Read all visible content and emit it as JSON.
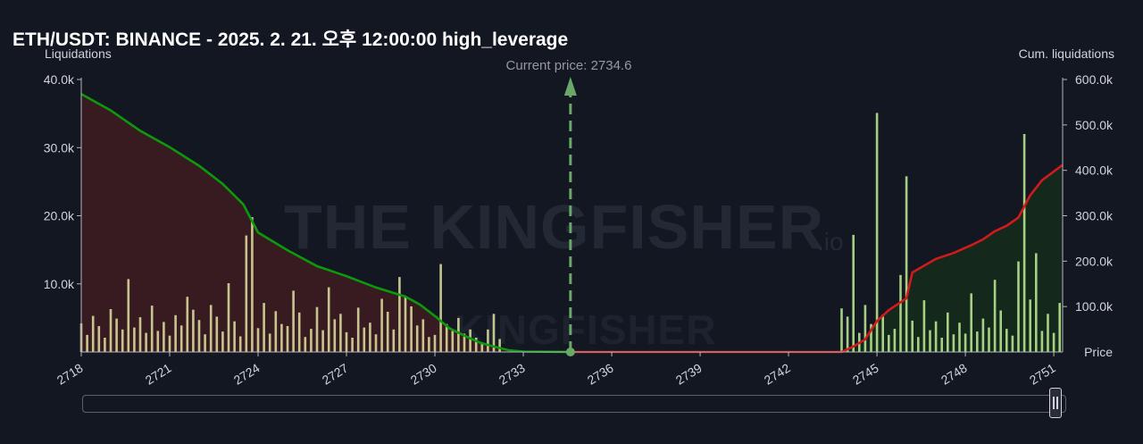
{
  "title": "ETH/USDT: BINANCE - 2025. 2. 21. 오후 12:00:00 high_leverage",
  "axes": {
    "left_title": "Liquidations",
    "right_title": "Cum. liquidations",
    "x_title": "Price"
  },
  "current_price_label": "Current price: 2734.6",
  "watermark": "THE KINGFISHER",
  "watermark_suffix": ".io",
  "colors": {
    "background": "#131722",
    "bars": "#d7d79a",
    "bars_right": "#b6e28f",
    "cum_left": "#0c9a0c",
    "cum_right": "#d11a1a",
    "area_left": "#3a1b22",
    "area_right": "#14291c",
    "current_price": "#6aa86a"
  },
  "chart_data": {
    "type": "bar",
    "title": "ETH/USDT: BINANCE - 2025. 2. 21. 오후 12:00:00 high_leverage",
    "xlabel": "Price",
    "ylabel": "Liquidations",
    "y2label": "Cum. liquidations",
    "xlim": [
      2718,
      2751.3
    ],
    "ylim": [
      0,
      40000
    ],
    "y2lim": [
      0,
      600000
    ],
    "x_ticks": [
      2718,
      2721,
      2724,
      2727,
      2730,
      2733,
      2736,
      2739,
      2742,
      2745,
      2748,
      2751
    ],
    "y_ticks": [
      {
        "v": 10000,
        "label": "10.0k"
      },
      {
        "v": 20000,
        "label": "20.0k"
      },
      {
        "v": 30000,
        "label": "30.0k"
      },
      {
        "v": 40000,
        "label": "40.0k"
      }
    ],
    "y2_ticks": [
      {
        "v": 100000,
        "label": "100.0k"
      },
      {
        "v": 200000,
        "label": "200.0k"
      },
      {
        "v": 300000,
        "label": "300.0k"
      },
      {
        "v": 400000,
        "label": "400.0k"
      },
      {
        "v": 500000,
        "label": "500.0k"
      },
      {
        "v": 600000,
        "label": "600.0k"
      }
    ],
    "current_price": 2734.6,
    "series": [
      {
        "name": "Liquidations (below price)",
        "x": [
          2718.0,
          2718.2,
          2718.4,
          2718.6,
          2718.8,
          2719.0,
          2719.2,
          2719.4,
          2719.6,
          2719.8,
          2720.0,
          2720.2,
          2720.4,
          2720.6,
          2720.8,
          2721.0,
          2721.2,
          2721.4,
          2721.6,
          2721.8,
          2722.0,
          2722.2,
          2722.4,
          2722.6,
          2722.8,
          2723.0,
          2723.2,
          2723.4,
          2723.6,
          2723.8,
          2724.0,
          2724.2,
          2724.4,
          2724.6,
          2724.8,
          2725.0,
          2725.2,
          2725.4,
          2725.6,
          2725.8,
          2726.0,
          2726.2,
          2726.4,
          2726.6,
          2726.8,
          2727.0,
          2727.2,
          2727.4,
          2727.6,
          2727.8,
          2728.0,
          2728.2,
          2728.4,
          2728.6,
          2728.8,
          2729.0,
          2729.2,
          2729.4,
          2729.6,
          2729.8,
          2730.0,
          2730.2,
          2730.4,
          2730.6,
          2730.8,
          2731.0,
          2731.2,
          2731.4,
          2731.6,
          2731.8,
          2732.0,
          2732.2
        ],
        "values": [
          4200,
          2500,
          5300,
          3800,
          2100,
          6300,
          4900,
          3300,
          10700,
          3600,
          5100,
          2800,
          6800,
          3100,
          4400,
          2400,
          5400,
          3900,
          8100,
          6200,
          4700,
          2600,
          6900,
          5200,
          3000,
          10100,
          4500,
          2300,
          17100,
          19800,
          3500,
          7200,
          2700,
          6000,
          4100,
          3800,
          9000,
          5800,
          2200,
          3400,
          6600,
          3200,
          9500,
          4800,
          5600,
          2900,
          2100,
          6500,
          3600,
          4300,
          2600,
          7800,
          5900,
          3300,
          11000,
          8200,
          6700,
          3900,
          4800,
          2200,
          2500,
          12900,
          4100,
          3100,
          5000,
          2700,
          3300,
          2100,
          1400,
          3300,
          5600,
          1900
        ]
      },
      {
        "name": "Liquidations (above price)",
        "x": [
          2743.8,
          2744.0,
          2744.2,
          2744.4,
          2744.6,
          2744.8,
          2745.0,
          2745.2,
          2745.4,
          2745.6,
          2745.8,
          2746.0,
          2746.2,
          2746.4,
          2746.6,
          2746.8,
          2747.0,
          2747.2,
          2747.4,
          2747.6,
          2747.8,
          2748.0,
          2748.2,
          2748.4,
          2748.6,
          2748.8,
          2749.0,
          2749.2,
          2749.4,
          2749.6,
          2749.8,
          2750.0,
          2750.2,
          2750.4,
          2750.6,
          2750.8,
          2751.0,
          2751.2
        ],
        "values": [
          6400,
          5200,
          17200,
          2800,
          6900,
          4100,
          35100,
          5500,
          2500,
          3400,
          11300,
          25800,
          4600,
          2200,
          7600,
          3200,
          4500,
          2100,
          5800,
          2600,
          4300,
          2700,
          8600,
          3000,
          4900,
          3600,
          10600,
          6100,
          3400,
          2400,
          13300,
          32000,
          7700,
          14500,
          3100,
          5600,
          2800,
          7200
        ]
      },
      {
        "name": "Cum. liquidations (below price)",
        "x": [
          2718.0,
          2719.0,
          2720.0,
          2721.0,
          2722.0,
          2722.8,
          2723.5,
          2724.0,
          2725.0,
          2726.0,
          2727.0,
          2728.0,
          2729.0,
          2729.5,
          2730.0,
          2730.5,
          2731.0,
          2731.5,
          2732.0,
          2732.5,
          2733.0,
          2734.6
        ],
        "values": [
          568000,
          532000,
          487000,
          451000,
          410000,
          370000,
          325000,
          263000,
          224000,
          189000,
          167000,
          142000,
          122000,
          104000,
          79000,
          52000,
          36000,
          21000,
          12000,
          4000,
          1000,
          0
        ]
      },
      {
        "name": "Cum. liquidations (above price)",
        "x": [
          2734.6,
          2743.8,
          2744.2,
          2744.6,
          2745.0,
          2745.4,
          2746.0,
          2746.2,
          2747.0,
          2747.6,
          2748.2,
          2748.6,
          2749.0,
          2749.4,
          2749.8,
          2750.2,
          2750.6,
          2751.3
        ],
        "values": [
          0,
          0,
          12000,
          28000,
          68000,
          92000,
          118000,
          175000,
          205000,
          218000,
          235000,
          248000,
          266000,
          278000,
          296000,
          345000,
          378000,
          412000
        ]
      }
    ]
  }
}
